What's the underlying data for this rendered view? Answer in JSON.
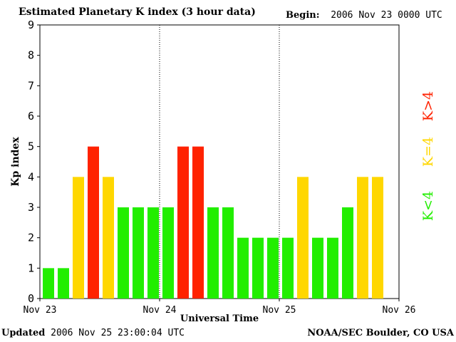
{
  "title": "Estimated Planetary K index (3 hour data)",
  "begin": {
    "label": "Begin:",
    "value": "2006 Nov 23 0000 UTC"
  },
  "updated": {
    "label": "Updated",
    "value": "2006 Nov 25 23:00:04 UTC"
  },
  "credit": "NOAA/SEC Boulder, CO USA",
  "colors": {
    "low": "#22ee00",
    "equal": "#ffd700",
    "high": "#ff2200"
  },
  "chart_data": {
    "type": "bar",
    "title": "Estimated Planetary K index (3 hour data)",
    "xlabel": "Universal Time",
    "ylabel": "Kp index",
    "ylim": [
      0,
      9
    ],
    "yticks": [
      0,
      1,
      2,
      3,
      4,
      5,
      6,
      7,
      8,
      9
    ],
    "xticks": [
      {
        "label": "Nov 23",
        "day": 0
      },
      {
        "label": "Nov 24",
        "day": 1
      },
      {
        "label": "Nov 25",
        "day": 2
      },
      {
        "label": "Nov 26",
        "day": 3
      }
    ],
    "day_separators": [
      1,
      2
    ],
    "bars_per_day": 8,
    "values": [
      1,
      1,
      4,
      5,
      4,
      3,
      3,
      3,
      3,
      5,
      5,
      3,
      3,
      2,
      2,
      2,
      2,
      4,
      2,
      2,
      3,
      4,
      4
    ],
    "legend": [
      {
        "label": "K<4",
        "color": "#22ee00"
      },
      {
        "label": "K=4",
        "color": "#ffd700"
      },
      {
        "label": "K>4",
        "color": "#ff2200"
      }
    ],
    "legend_position": "right",
    "grid": false
  }
}
